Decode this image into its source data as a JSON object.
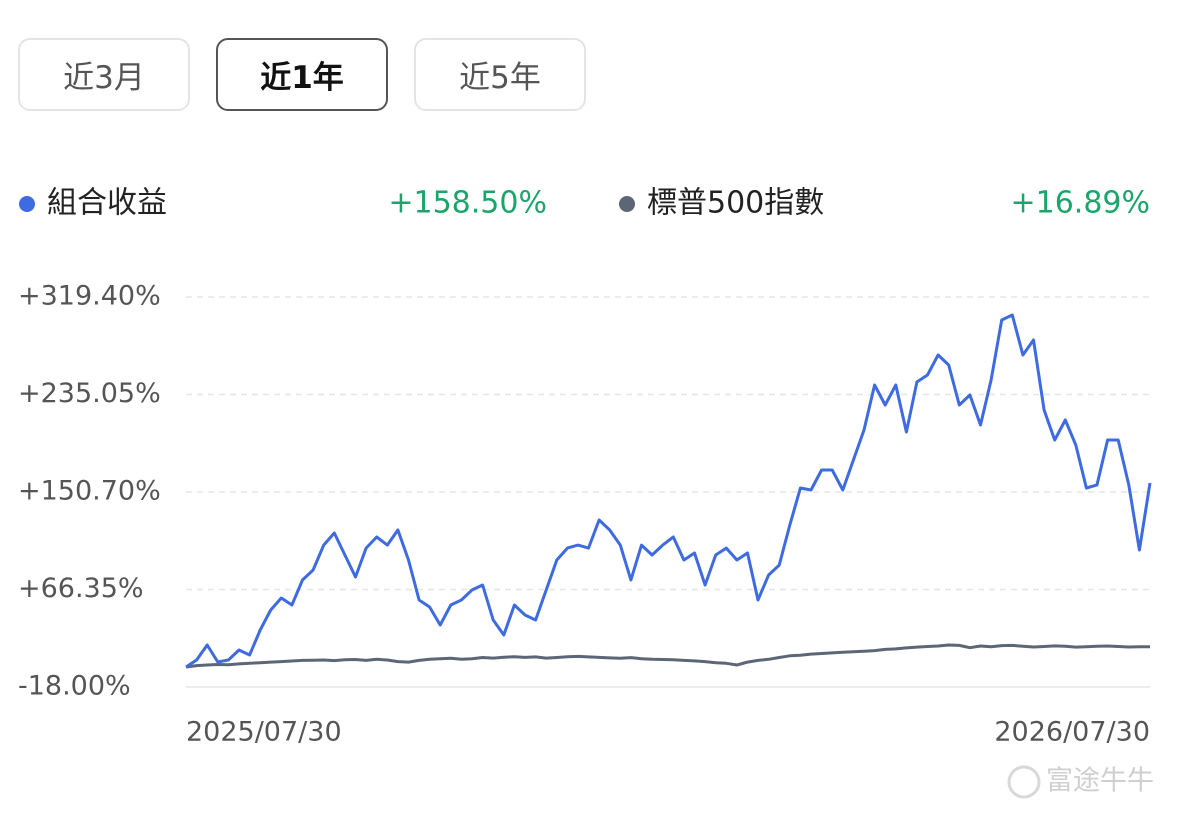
{
  "tabs": [
    "近3月",
    "近1年",
    "近5年"
  ],
  "selected_tab": 1,
  "watermark": "富途牛牛",
  "chart_data": {
    "type": "line",
    "series": [
      {
        "name": "組合收益",
        "color": "#3f6be0",
        "summary": "+158.50%",
        "values": [
          -0.7,
          5.4,
          18.3,
          3.6,
          5.4,
          14.0,
          9.7,
          31.3,
          48.6,
          59.0,
          52.9,
          74.6,
          83.2,
          104.8,
          115.2,
          96.2,
          77.2,
          102.2,
          111.8,
          104.8,
          117.8,
          91.9,
          57.3,
          51.2,
          35.6,
          52.9,
          57.3,
          65.9,
          70.2,
          40.0,
          27.0,
          52.9,
          44.3,
          40.0,
          65.9,
          91.9,
          102.2,
          104.8,
          102.2,
          126.5,
          117.8,
          104.8,
          74.6,
          104.8,
          96.2,
          104.8,
          111.8,
          91.9,
          97.9,
          70.2,
          96.2,
          102.2,
          91.9,
          97.9,
          57.3,
          78.9,
          87.5,
          122.1,
          154.2,
          152.4,
          169.7,
          169.7,
          152.4,
          178.4,
          204.3,
          243.3,
          226.0,
          243.3,
          202.6,
          245.9,
          251.9,
          269.2,
          260.6,
          226.0,
          234.6,
          208.7,
          247.6,
          299.5,
          303.8,
          269.2,
          282.2,
          221.6,
          195.7,
          213.0,
          191.4,
          154.2,
          156.8,
          195.7,
          195.7,
          156.8,
          100.5,
          158.5
        ]
      },
      {
        "name": "標普500指數",
        "color": "#5d6677",
        "summary": "+16.89%",
        "values": [
          -0.7,
          0.5,
          1.0,
          1.5,
          1.2,
          2.0,
          2.5,
          3.0,
          3.5,
          4.0,
          4.5,
          5.0,
          5.2,
          5.4,
          4.8,
          5.6,
          5.8,
          5.0,
          6.0,
          5.4,
          4.0,
          3.5,
          5.0,
          6.0,
          6.5,
          6.8,
          6.0,
          6.5,
          7.5,
          7.0,
          7.8,
          8.2,
          7.6,
          8.0,
          7.0,
          7.5,
          8.2,
          8.5,
          8.0,
          7.6,
          7.2,
          6.8,
          7.4,
          6.5,
          6.0,
          5.8,
          5.5,
          5.0,
          4.6,
          4.0,
          3.0,
          2.5,
          1.0,
          3.5,
          5.0,
          6.0,
          7.5,
          9.0,
          9.5,
          10.5,
          11.0,
          11.5,
          12.0,
          12.5,
          13.0,
          13.5,
          14.5,
          15.0,
          15.8,
          16.5,
          17.0,
          17.5,
          18.3,
          18.0,
          16.0,
          17.5,
          16.8,
          17.8,
          18.0,
          17.2,
          16.6,
          17.0,
          17.6,
          17.2,
          16.5,
          16.8,
          17.2,
          17.5,
          17.0,
          16.6,
          16.9,
          16.89
        ]
      }
    ],
    "categories": [
      "2025/07/30",
      null,
      null,
      null,
      null,
      null,
      null,
      null,
      null,
      null,
      null,
      null,
      null,
      null,
      null,
      null,
      null,
      null,
      null,
      null,
      null,
      null,
      null,
      null,
      null,
      null,
      null,
      null,
      null,
      null,
      null,
      null,
      null,
      null,
      null,
      null,
      null,
      null,
      null,
      null,
      null,
      null,
      null,
      null,
      null,
      null,
      null,
      null,
      null,
      null,
      null,
      null,
      null,
      null,
      null,
      null,
      null,
      null,
      null,
      null,
      null,
      null,
      null,
      null,
      null,
      null,
      null,
      null,
      null,
      null,
      null,
      null,
      null,
      null,
      null,
      null,
      null,
      null,
      null,
      null,
      null,
      null,
      null,
      null,
      null,
      null,
      null,
      null,
      null,
      null,
      null,
      "2026/07/30"
    ],
    "ylim": [
      -18,
      319.4
    ],
    "yticks": [
      {
        "value": -18,
        "label": "-18.00%"
      },
      {
        "value": 66.35,
        "label": "+66.35%"
      },
      {
        "value": 150.7,
        "label": "+150.70%"
      },
      {
        "value": 235.05,
        "label": "+235.05%"
      },
      {
        "value": 319.4,
        "label": "+319.40%"
      }
    ],
    "summary_color": "#1ba56a",
    "grid": true
  }
}
